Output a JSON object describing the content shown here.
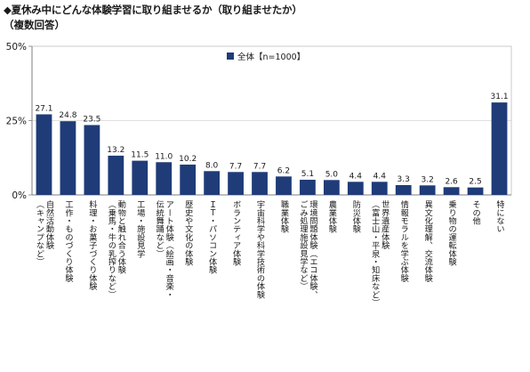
{
  "header": {
    "title": "◆夏休み中にどんな体験学習に取り組ませるか（取り組ませたか）",
    "subtitle": "（複数回答）"
  },
  "colors": {
    "bar": "#1f3c78",
    "axis": "#7f7f7f",
    "grid": "#bfbfbf"
  },
  "chart_data": {
    "type": "bar",
    "title": "◆夏休み中にどんな体験学習に取り組ませるか（取り組ませたか）",
    "subtitle": "（複数回答）",
    "xlabel": "",
    "ylabel": "",
    "ylim": [
      0,
      50
    ],
    "y_ticks": [
      "0%",
      "25%",
      "50%"
    ],
    "y_tick_values": [
      0,
      25,
      50
    ],
    "legend": {
      "position": "top-center"
    },
    "categories": [
      "自然活動体験（キャンプなど）",
      "工作・ものづくり体験",
      "料理・お菓子づくり体験",
      "動物と触れ合う体験（乗馬・牛の乳搾りなど）",
      "工場・施設見学",
      "アート体験（絵画・音楽・伝統舞踊など）",
      "歴史や文化の体験",
      "ＩＴ・パソコン体験",
      "ボランティア体験",
      "宇宙科学や科学技術の体験",
      "職業体験",
      "環境問題体験（エコ体験、ごみ処理施設見学など）",
      "農業体験",
      "防災体験",
      "世界遺産体験（富士山・平泉・知床など）",
      "情報モラルを学ぶ体験",
      "異文化理解、交流体験",
      "乗り物の運転体験",
      "その他",
      "特にない"
    ],
    "label_columns": [
      [
        "自然活動体験",
        "（キャンプなど）"
      ],
      [
        "工作・ものづくり体験"
      ],
      [
        "料理・お菓子づくり体験"
      ],
      [
        "動物と触れ合う体験",
        "（乗馬・牛の乳搾りなど）"
      ],
      [
        "工場・施設見学"
      ],
      [
        "アート体験（絵画・音楽・",
        "伝統舞踊など）"
      ],
      [
        "歴史や文化の体験"
      ],
      [
        "ＩＴ・パソコン体験"
      ],
      [
        "ボランティア体験"
      ],
      [
        "宇宙科学や科学技術の体験"
      ],
      [
        "職業体験"
      ],
      [
        "環境問題体験（エコ体験、",
        "ごみ処理施設見学など）"
      ],
      [
        "農業体験"
      ],
      [
        "防災体験"
      ],
      [
        "世界遺産体験",
        "（富士山・平泉・知床など）"
      ],
      [
        "情報モラルを学ぶ体験"
      ],
      [
        "異文化理解、交流体験"
      ],
      [
        "乗り物の運転体験"
      ],
      [
        "その他"
      ],
      [
        "特にない"
      ]
    ],
    "series": [
      {
        "name": "全体【n=1000】",
        "values": [
          27.1,
          24.8,
          23.5,
          13.2,
          11.5,
          11.0,
          10.2,
          8.0,
          7.7,
          7.7,
          6.2,
          5.1,
          5.0,
          4.4,
          4.4,
          3.3,
          3.2,
          2.6,
          2.5,
          31.1
        ],
        "value_labels": [
          "27.1",
          "24.8",
          "23.5",
          "13.2",
          "11.5",
          "11.0",
          "10.2",
          "8.0",
          "7.7",
          "7.7",
          "6.2",
          "5.1",
          "5.0",
          "4.4",
          "4.4",
          "3.3",
          "3.2",
          "2.6",
          "2.5",
          "31.1"
        ]
      }
    ]
  }
}
